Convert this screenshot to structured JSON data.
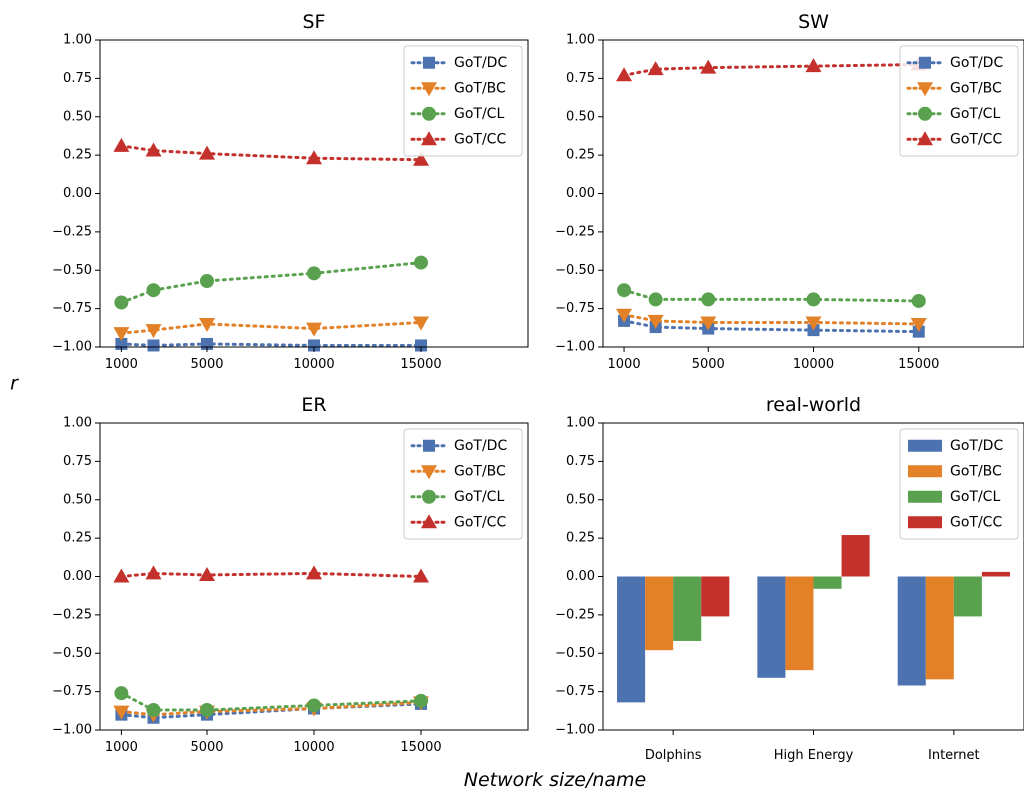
{
  "figure": {
    "ylabel": "r",
    "xlabel": "Network size/name"
  },
  "colors": {
    "DC": "#4c72b0",
    "BC": "#e38129",
    "CL": "#59a14f",
    "CC": "#c4302b"
  },
  "chart_data": [
    {
      "type": "line",
      "title": "SF",
      "x": [
        1000,
        2500,
        5000,
        10000,
        15000
      ],
      "xticks": [
        1000,
        5000,
        10000,
        15000
      ],
      "xtick_labels": [
        "1000",
        "5000",
        "10000",
        "15000"
      ],
      "xlim": [
        0,
        20000
      ],
      "ylim": [
        -1.0,
        1.0
      ],
      "yticks": [
        1.0,
        0.75,
        0.5,
        0.25,
        0.0,
        -0.25,
        -0.5,
        -0.75,
        -1.0
      ],
      "ytick_labels": [
        "1.00",
        "0.75",
        "0.50",
        "0.25",
        "0.00",
        "−0.25",
        "−0.50",
        "−0.75",
        "−1.00"
      ],
      "legend_position": "top-right",
      "series": [
        {
          "name": "GoT/DC",
          "marker": "square",
          "color_key": "DC",
          "values": [
            -0.98,
            -0.99,
            -0.98,
            -0.99,
            -0.99
          ]
        },
        {
          "name": "GoT/BC",
          "marker": "triangle-down",
          "color_key": "BC",
          "values": [
            -0.91,
            -0.89,
            -0.85,
            -0.88,
            -0.84
          ]
        },
        {
          "name": "GoT/CL",
          "marker": "circle",
          "color_key": "CL",
          "values": [
            -0.71,
            -0.63,
            -0.57,
            -0.52,
            -0.45
          ]
        },
        {
          "name": "GoT/CC",
          "marker": "triangle-up",
          "color_key": "CC",
          "values": [
            0.31,
            0.28,
            0.26,
            0.23,
            0.22
          ]
        }
      ]
    },
    {
      "type": "line",
      "title": "SW",
      "x": [
        1000,
        2500,
        5000,
        10000,
        15000
      ],
      "xticks": [
        1000,
        5000,
        10000,
        15000
      ],
      "xtick_labels": [
        "1000",
        "5000",
        "10000",
        "15000"
      ],
      "xlim": [
        0,
        20000
      ],
      "ylim": [
        -1.0,
        1.0
      ],
      "yticks": [
        1.0,
        0.75,
        0.5,
        0.25,
        0.0,
        -0.25,
        -0.5,
        -0.75,
        -1.0
      ],
      "ytick_labels": [
        "1.00",
        "0.75",
        "0.50",
        "0.25",
        "0.00",
        "−0.25",
        "−0.50",
        "−0.75",
        "−1.00"
      ],
      "legend_position": "top-right",
      "series": [
        {
          "name": "GoT/DC",
          "marker": "square",
          "color_key": "DC",
          "values": [
            -0.83,
            -0.87,
            -0.88,
            -0.89,
            -0.9
          ]
        },
        {
          "name": "GoT/BC",
          "marker": "triangle-down",
          "color_key": "BC",
          "values": [
            -0.79,
            -0.83,
            -0.84,
            -0.84,
            -0.85
          ]
        },
        {
          "name": "GoT/CL",
          "marker": "circle",
          "color_key": "CL",
          "values": [
            -0.63,
            -0.69,
            -0.69,
            -0.69,
            -0.7
          ]
        },
        {
          "name": "GoT/CC",
          "marker": "triangle-up",
          "color_key": "CC",
          "values": [
            0.77,
            0.81,
            0.82,
            0.83,
            0.84
          ]
        }
      ]
    },
    {
      "type": "line",
      "title": "ER",
      "x": [
        1000,
        2500,
        5000,
        10000,
        15000
      ],
      "xticks": [
        1000,
        5000,
        10000,
        15000
      ],
      "xtick_labels": [
        "1000",
        "5000",
        "10000",
        "15000"
      ],
      "xlim": [
        0,
        20000
      ],
      "ylim": [
        -1.0,
        1.0
      ],
      "yticks": [
        1.0,
        0.75,
        0.5,
        0.25,
        0.0,
        -0.25,
        -0.5,
        -0.75,
        -1.0
      ],
      "ytick_labels": [
        "1.00",
        "0.75",
        "0.50",
        "0.25",
        "0.00",
        "−0.25",
        "−0.50",
        "−0.75",
        "−1.00"
      ],
      "legend_position": "top-right",
      "series": [
        {
          "name": "GoT/DC",
          "marker": "square",
          "color_key": "DC",
          "values": [
            -0.9,
            -0.92,
            -0.9,
            -0.86,
            -0.83
          ]
        },
        {
          "name": "GoT/BC",
          "marker": "triangle-down",
          "color_key": "BC",
          "values": [
            -0.88,
            -0.9,
            -0.88,
            -0.86,
            -0.82
          ]
        },
        {
          "name": "GoT/CL",
          "marker": "circle",
          "color_key": "CL",
          "values": [
            -0.76,
            -0.87,
            -0.87,
            -0.84,
            -0.81
          ]
        },
        {
          "name": "GoT/CC",
          "marker": "triangle-up",
          "color_key": "CC",
          "values": [
            0.0,
            0.02,
            0.01,
            0.02,
            0.0
          ]
        }
      ]
    },
    {
      "type": "bar",
      "title": "real-world",
      "categories": [
        "Dolphins",
        "High Energy",
        "Internet"
      ],
      "ylim": [
        -1.0,
        1.0
      ],
      "yticks": [
        1.0,
        0.75,
        0.5,
        0.25,
        0.0,
        -0.25,
        -0.5,
        -0.75,
        -1.0
      ],
      "ytick_labels": [
        "1.00",
        "0.75",
        "0.50",
        "0.25",
        "0.00",
        "−0.25",
        "−0.50",
        "−0.75",
        "−1.00"
      ],
      "legend_position": "top-right",
      "series": [
        {
          "name": "GoT/DC",
          "color_key": "DC",
          "values": [
            -0.82,
            -0.66,
            -0.71
          ]
        },
        {
          "name": "GoT/BC",
          "color_key": "BC",
          "values": [
            -0.48,
            -0.61,
            -0.67
          ]
        },
        {
          "name": "GoT/CL",
          "color_key": "CL",
          "values": [
            -0.42,
            -0.08,
            -0.26
          ]
        },
        {
          "name": "GoT/CC",
          "color_key": "CC",
          "values": [
            -0.26,
            0.27,
            0.03
          ]
        }
      ]
    }
  ]
}
